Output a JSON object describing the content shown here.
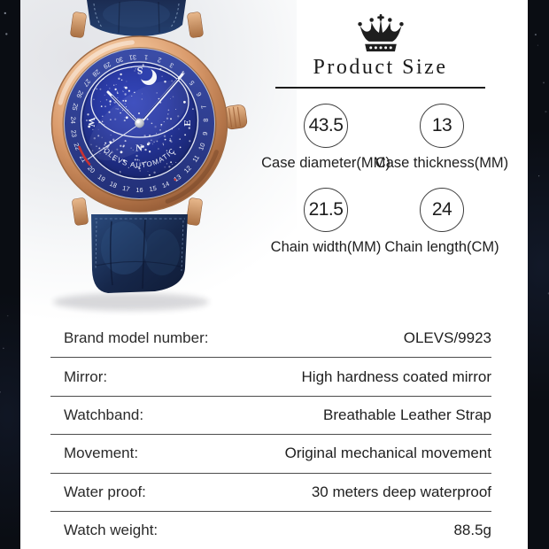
{
  "size_panel": {
    "crown_icon": "crown-icon",
    "title": "Product Size",
    "metrics": [
      {
        "value": "43.5",
        "label": "Case diameter(MM)"
      },
      {
        "value": "13",
        "label": "Case thickness(MM)"
      },
      {
        "value": "21.5",
        "label": "Chain width(MM)"
      },
      {
        "value": "24",
        "label": "Chain length(CM)"
      }
    ]
  },
  "spec_table": {
    "rows": [
      {
        "label": "Brand model number:",
        "value": "OLEVS/9923"
      },
      {
        "label": "Mirror:",
        "value": "High hardness coated mirror"
      },
      {
        "label": "Watchband:",
        "value": "Breathable Leather Strap"
      },
      {
        "label": "Movement:",
        "value": "Original mechanical movement"
      },
      {
        "label": "Water proof:",
        "value": "30 meters deep waterproof"
      },
      {
        "label": "Watch weight:",
        "value": "88.5g"
      }
    ]
  },
  "watch": {
    "dial_brand_text": "OLEVS AUTOMATIC",
    "compass_letters": [
      "S",
      "W",
      "N",
      "E"
    ],
    "date_ring_numbers": [
      1,
      2,
      3,
      4,
      5,
      6,
      7,
      8,
      9,
      10,
      11,
      12,
      13,
      14,
      15,
      16,
      17,
      18,
      19,
      20,
      21,
      22,
      23,
      24,
      25,
      26,
      27,
      28,
      29,
      30,
      31
    ],
    "colors": {
      "case_gold": "#d89a6c",
      "strap_blue": "#1f3d71",
      "dial_blue": "#2838a6",
      "bezel_blue": "#2b3c93",
      "accent_red": "#c83232"
    }
  }
}
